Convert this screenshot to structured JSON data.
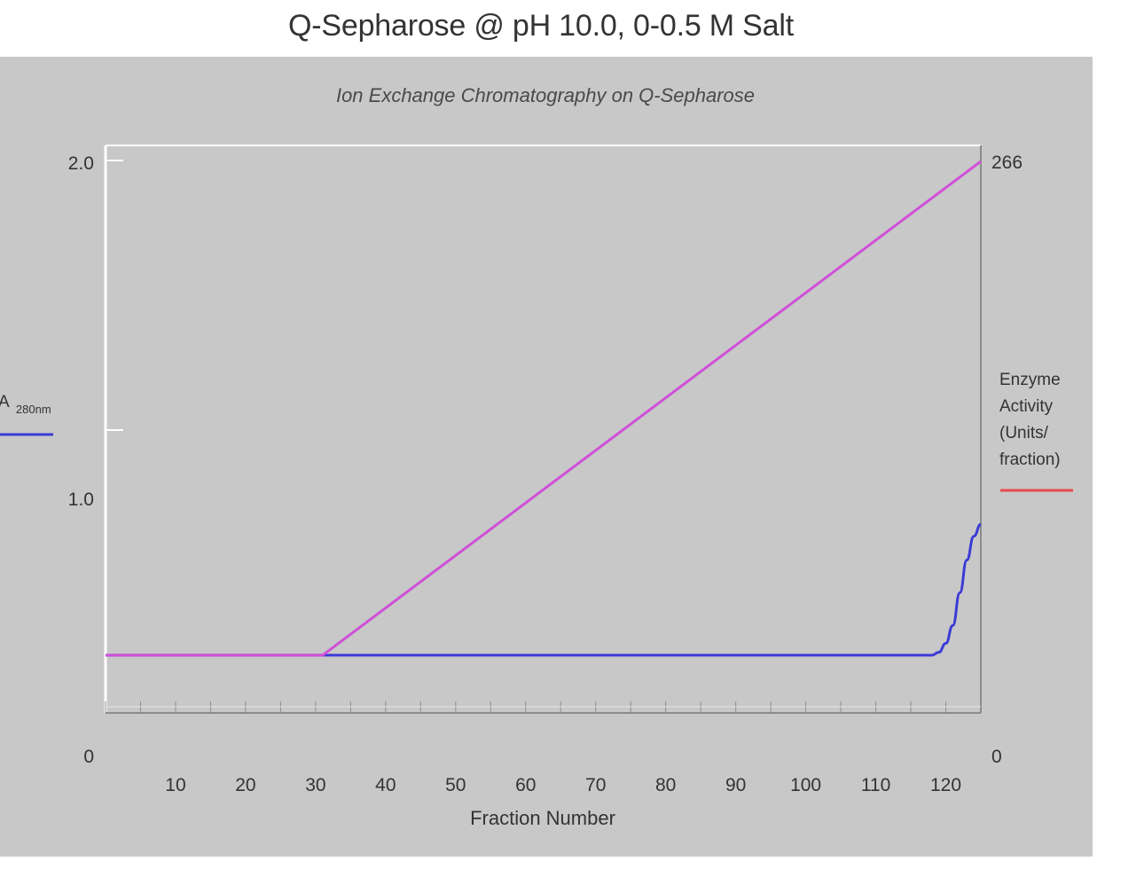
{
  "page_title": "Q-Sepharose @ pH 10.0, 0-0.5 M Salt",
  "colors": {
    "panel_bg": "#c8c8c8",
    "axis": "#ffffff",
    "axis_shadow": "#8c8c8c",
    "a280": "#3b3bd6",
    "salt": "#d050d8",
    "enzyme": "#e84a4a"
  },
  "chart_data": {
    "type": "line",
    "title": "Ion Exchange Chromatography on Q-Sepharose",
    "xlabel": "Fraction Number",
    "x_ticks": [
      "10",
      "20",
      "30",
      "40",
      "50",
      "60",
      "70",
      "80",
      "90",
      "100",
      "110",
      "120"
    ],
    "xlim": [
      0,
      125
    ],
    "y_left": {
      "label_main": "A",
      "label_sub": "280nm",
      "ticks": [
        "0",
        "1.0",
        "2.0"
      ],
      "ylim": [
        0,
        2.0
      ]
    },
    "y_right": {
      "label_lines": [
        "Enzyme",
        "Activity",
        "(Units/",
        "fraction)"
      ],
      "ticks": [
        "0",
        "266"
      ],
      "ylim": [
        0,
        266
      ]
    },
    "grid": false,
    "series": [
      {
        "key": "a280",
        "axis": "left",
        "color": "#3b3bd6",
        "x": [
          0,
          30,
          60,
          90,
          118,
          119,
          120,
          121,
          122,
          123,
          124,
          125
        ],
        "y": [
          0.34,
          0.34,
          0.34,
          0.34,
          0.34,
          0.35,
          0.38,
          0.44,
          0.55,
          0.66,
          0.74,
          0.78
        ]
      },
      {
        "key": "salt",
        "axis": "left",
        "color": "#d050d8",
        "x": [
          0,
          31,
          125
        ],
        "y": [
          0.34,
          0.34,
          2.0
        ]
      },
      {
        "key": "enzyme",
        "axis": "right",
        "color": "#e84a4a",
        "x": [],
        "y": []
      }
    ]
  }
}
